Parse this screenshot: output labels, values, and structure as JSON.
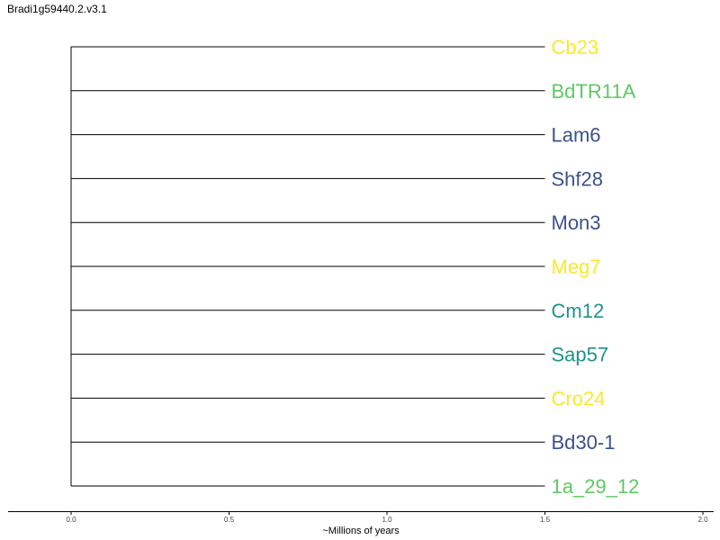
{
  "title": "Bradi1g59440.2.v3.1",
  "chart_data": {
    "type": "tree",
    "xlabel": "~Millions of years",
    "xlim": [
      -0.2,
      2.04
    ],
    "xticks": [
      "0.0",
      "0.5",
      "1.0",
      "1.5",
      "2.0"
    ],
    "xtick_values": [
      0.0,
      0.5,
      1.0,
      1.5,
      2.0
    ],
    "root_x": 0.0,
    "tips": [
      {
        "name": "Cb23",
        "branch_end": 1.5,
        "color": "#fde725"
      },
      {
        "name": "BdTR11A",
        "branch_end": 1.5,
        "color": "#5ec962"
      },
      {
        "name": "Lam6",
        "branch_end": 1.5,
        "color": "#3b528b"
      },
      {
        "name": "Shf28",
        "branch_end": 1.5,
        "color": "#3b528b"
      },
      {
        "name": "Mon3",
        "branch_end": 1.5,
        "color": "#3b528b"
      },
      {
        "name": "Meg7",
        "branch_end": 1.5,
        "color": "#fde725"
      },
      {
        "name": "Cm12",
        "branch_end": 1.5,
        "color": "#21918c"
      },
      {
        "name": "Sap57",
        "branch_end": 1.5,
        "color": "#21918c"
      },
      {
        "name": "Cro24",
        "branch_end": 1.5,
        "color": "#fde725"
      },
      {
        "name": "Bd30-1",
        "branch_end": 1.5,
        "color": "#3b528b"
      },
      {
        "name": "1a_29_12",
        "branch_end": 1.5,
        "color": "#5ec962"
      }
    ]
  }
}
